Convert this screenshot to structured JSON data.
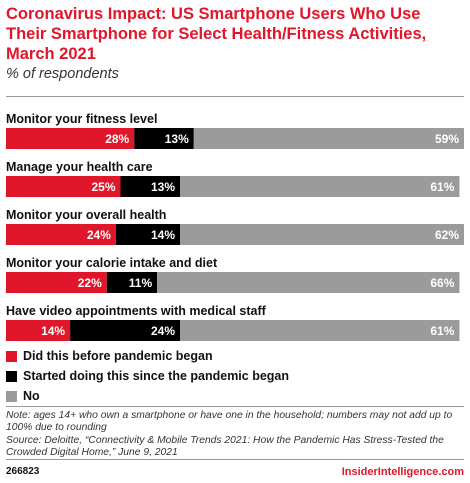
{
  "chart_data": {
    "type": "bar",
    "orientation": "horizontal",
    "stacked": true,
    "title": "Coronavirus Impact: US Smartphone Users Who Use Their Smartphone for Select Health/Fitness Activities, March 2021",
    "subtitle": "% of respondents",
    "xlim": [
      0,
      100
    ],
    "unit": "%",
    "grid": false,
    "legend_position": "bottom-left",
    "categories": [
      "Monitor your fitness level",
      "Manage your health care",
      "Monitor your overall health",
      "Monitor your calorie intake and diet",
      "Have video appointments with medical staff"
    ],
    "series": [
      {
        "name": "Did this before pandemic began",
        "color": "#e0162b",
        "values": [
          28,
          25,
          24,
          22,
          14
        ]
      },
      {
        "name": "Started doing this since the pandemic began",
        "color": "#000000",
        "values": [
          13,
          13,
          14,
          11,
          24
        ]
      },
      {
        "name": "No",
        "color": "#9b9b9b",
        "values": [
          59,
          61,
          62,
          66,
          61
        ]
      }
    ]
  },
  "note": "Note: ages 14+ who own a smartphone or have one in the household; numbers may not add up to 100% due to rounding",
  "source": "Source: Deloitte, “Connectivity & Mobile Trends 2021: How the Pandemic Has Stress-Tested the Crowded Digital Home,” June 9, 2021",
  "footer": {
    "chart_id": "266823",
    "brand": "InsiderIntelligence.com"
  }
}
